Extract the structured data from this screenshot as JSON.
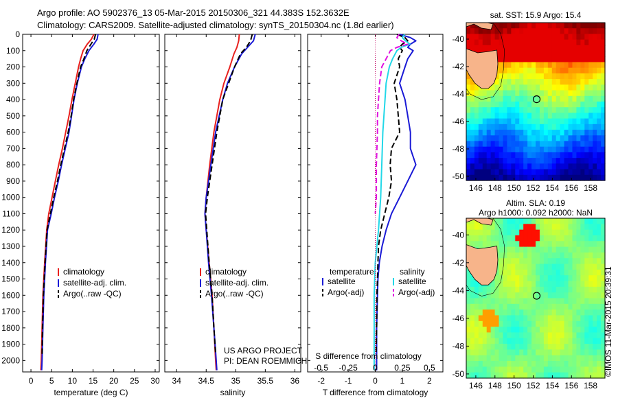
{
  "title_line1": "Argo profile: AO 5902376_13 05-Mar-2015 20150306_321 44.383S 152.3632E",
  "title_line2": "Climatology: CARS2009. Satellite-adjusted climatology: synTS_20150304.nc (1.8d earlier)",
  "project_line1": "US ARGO PROJECT",
  "project_line2": "PI: DEAN ROEMMICH",
  "vertical_stamp": "©IMOS 11-Mar-2015 20:39:31",
  "colors": {
    "climatology": "#e8201e",
    "satellite": "#1a1ad6",
    "argo": "#000000",
    "salinity_satellite": "#22d8e8",
    "salinity_argo": "#e010e0"
  },
  "chart_data": [
    {
      "type": "line",
      "xlabel": "temperature (deg C)",
      "ylabel": "",
      "xlim": [
        -2,
        31
      ],
      "ylim": [
        2070,
        0
      ],
      "x_ticks": [
        0,
        5,
        10,
        15,
        20,
        25,
        30
      ],
      "y_ticks": [
        0,
        100,
        200,
        300,
        400,
        500,
        600,
        700,
        800,
        900,
        1000,
        1100,
        1200,
        1300,
        1400,
        1500,
        1600,
        1700,
        1800,
        1900,
        2000
      ],
      "legend": [
        "climatology",
        "satellite-adj. clim.",
        "Argo(..raw -QC)"
      ],
      "series": [
        {
          "name": "climatology",
          "depth": [
            0,
            30,
            60,
            100,
            150,
            200,
            300,
            400,
            500,
            600,
            700,
            800,
            900,
            1000,
            1100,
            1200,
            1400,
            1600,
            1800,
            2000,
            2060
          ],
          "values": [
            15.2,
            14.6,
            13.6,
            12.6,
            12.0,
            11.5,
            10.7,
            9.9,
            9.2,
            8.4,
            7.6,
            6.7,
            5.9,
            5.1,
            4.3,
            3.8,
            3.3,
            2.9,
            2.7,
            2.5,
            2.4
          ]
        },
        {
          "name": "satellite-adj. clim.",
          "depth": [
            0,
            30,
            60,
            100,
            150,
            200,
            300,
            400,
            500,
            600,
            700,
            800,
            900,
            1000,
            1100,
            1200,
            1400,
            1600,
            1800,
            2000,
            2060
          ],
          "values": [
            16.2,
            16.0,
            15.2,
            14.0,
            13.0,
            12.2,
            11.2,
            10.4,
            9.8,
            9.2,
            8.3,
            7.4,
            6.6,
            5.7,
            4.9,
            4.0,
            3.5,
            3.1,
            2.9,
            2.7,
            2.6
          ]
        },
        {
          "name": "Argo(..raw -QC)",
          "depth": [
            0,
            30,
            60,
            100,
            150,
            200,
            300,
            400,
            500,
            600,
            700,
            800,
            900,
            1000,
            1100,
            1200,
            1400,
            1600,
            1800,
            1960
          ],
          "values": [
            15.6,
            15.3,
            14.5,
            13.5,
            12.8,
            12.0,
            11.1,
            10.3,
            9.7,
            9.0,
            8.1,
            7.2,
            6.4,
            5.5,
            4.7,
            3.9,
            3.4,
            3.0,
            2.8,
            2.7
          ]
        }
      ]
    },
    {
      "type": "line",
      "xlabel": "salinity",
      "ylabel": "",
      "xlim": [
        33.8,
        36.1
      ],
      "ylim": [
        2070,
        0
      ],
      "x_ticks": [
        34,
        34.5,
        35,
        35.5,
        36
      ],
      "legend": [
        "climatology",
        "satellite-adj. clim.",
        "Argo(..raw -QC)"
      ],
      "series": [
        {
          "name": "climatology",
          "depth": [
            0,
            40,
            80,
            120,
            200,
            300,
            400,
            600,
            800,
            1000,
            1100,
            1200,
            1400,
            1600,
            1800,
            2000,
            2060
          ],
          "values": [
            35.06,
            35.05,
            35.02,
            34.97,
            34.9,
            34.8,
            34.73,
            34.63,
            34.56,
            34.5,
            34.48,
            34.5,
            34.55,
            34.6,
            34.63,
            34.66,
            34.67
          ]
        },
        {
          "name": "satellite-adj. clim.",
          "depth": [
            0,
            40,
            80,
            120,
            200,
            300,
            400,
            600,
            800,
            1000,
            1100,
            1200,
            1400,
            1600,
            1800,
            2000,
            2060
          ],
          "values": [
            35.33,
            35.3,
            35.2,
            35.1,
            34.98,
            34.86,
            34.78,
            34.66,
            34.58,
            34.5,
            34.48,
            34.5,
            34.54,
            34.59,
            34.63,
            34.67,
            34.68
          ]
        },
        {
          "name": "Argo(..raw -QC)",
          "depth": [
            0,
            40,
            80,
            120,
            200,
            300,
            400,
            600,
            800,
            1000,
            1100,
            1200,
            1400,
            1600,
            1800,
            1960
          ],
          "values": [
            35.28,
            35.25,
            35.18,
            35.08,
            34.98,
            34.88,
            34.78,
            34.68,
            34.6,
            34.52,
            34.49,
            34.51,
            34.55,
            34.6,
            34.63,
            34.66
          ]
        }
      ]
    },
    {
      "type": "line",
      "xlabel": "T difference from climatology",
      "xlim": [
        -2.5,
        2.5
      ],
      "x_ticks": [
        -2,
        -1,
        0,
        1,
        2
      ],
      "x_tick_labels": [
        "-2",
        "-1",
        "0",
        "1",
        "2"
      ],
      "secondary_xlabel": "S difference from climatology",
      "secondary_x_ticks": [
        -0.5,
        -0.25,
        0,
        0.25,
        0.5
      ],
      "secondary_x_tick_labels": [
        "-0.5",
        "-0.25",
        "0",
        "0.25",
        "0.5"
      ],
      "ylim": [
        2070,
        0
      ],
      "legend_temperature": "temperature",
      "legend_salinity": "salinity",
      "legend": [
        "satellite",
        "Argo(-adj)",
        "satellite",
        "Argo(-adj)"
      ],
      "series": [
        {
          "name": "satellite",
          "depth": [
            0,
            20,
            40,
            60,
            80,
            100,
            150,
            200,
            300,
            400,
            500,
            600,
            700,
            800,
            900,
            1000,
            1100,
            1200,
            1300,
            1400,
            1500,
            1600,
            1800,
            2000,
            2060
          ],
          "values": [
            0.9,
            1.3,
            1.5,
            1.3,
            1.2,
            1.4,
            1.2,
            1.1,
            0.9,
            1.1,
            1.2,
            1.3,
            1.3,
            1.5,
            1.2,
            0.9,
            0.6,
            0.4,
            0.25,
            0.15,
            0.1,
            0.08,
            0.05,
            0.05,
            0.05
          ]
        },
        {
          "name": "Argo(-adj)",
          "depth": [
            0,
            20,
            40,
            60,
            80,
            100,
            150,
            200,
            300,
            400,
            500,
            600,
            700,
            800,
            900,
            1000,
            1100,
            1200,
            1300,
            1400,
            1500,
            1600,
            1800,
            1960
          ],
          "values": [
            0.8,
            1.1,
            1.2,
            1.0,
            0.9,
            1.0,
            0.85,
            0.9,
            0.7,
            0.8,
            0.85,
            0.9,
            0.6,
            0.55,
            0.6,
            0.5,
            0.35,
            0.2,
            0.12,
            0.1,
            0.08,
            0.06,
            0.05,
            0.03
          ]
        },
        {
          "name": "satellite",
          "depth": [
            0,
            20,
            40,
            60,
            80,
            100,
            150,
            200,
            300,
            400,
            500,
            600,
            800,
            1000,
            1200,
            1400,
            1600,
            1800,
            2000,
            2060
          ],
          "values": [
            0.27,
            0.25,
            0.28,
            0.32,
            0.24,
            0.2,
            0.16,
            0.13,
            0.1,
            0.09,
            0.08,
            0.07,
            0.06,
            0.05,
            0.03,
            0.0,
            -0.01,
            -0.01,
            -0.01,
            -0.01
          ]
        },
        {
          "name": "Argo(-adj)",
          "depth": [
            0,
            20,
            40,
            60,
            80,
            100,
            150,
            200,
            300,
            400,
            500,
            600,
            800,
            1000,
            1100
          ],
          "values": [
            0.22,
            0.2,
            0.24,
            0.3,
            0.2,
            0.14,
            0.1,
            0.06,
            0.04,
            0.03,
            0.02,
            0.02,
            0.01,
            0.01,
            0.0
          ]
        }
      ]
    },
    {
      "type": "heatmap",
      "title": "sat. SST: 15.9  Argo: 15.4",
      "x_ticks": [
        146,
        148,
        150,
        152,
        154,
        156,
        158
      ],
      "y_ticks": [
        -40,
        -42,
        -44,
        -46,
        -48,
        -50
      ],
      "xlim": [
        145,
        159.5
      ],
      "ylim": [
        -50.3,
        -38.8
      ],
      "marker": {
        "lon": 152.36,
        "lat": -44.38
      }
    },
    {
      "type": "heatmap",
      "title_line1": "Altim. SLA: 0.19",
      "title_line2": "Argo h1000: 0.092 h2000: NaN",
      "x_ticks": [
        146,
        148,
        150,
        152,
        154,
        156,
        158
      ],
      "y_ticks": [
        -40,
        -42,
        -44,
        -46,
        -48,
        -50
      ],
      "xlim": [
        145,
        159.5
      ],
      "ylim": [
        -50.3,
        -38.8
      ],
      "marker": {
        "lon": 152.36,
        "lat": -44.38
      }
    }
  ]
}
